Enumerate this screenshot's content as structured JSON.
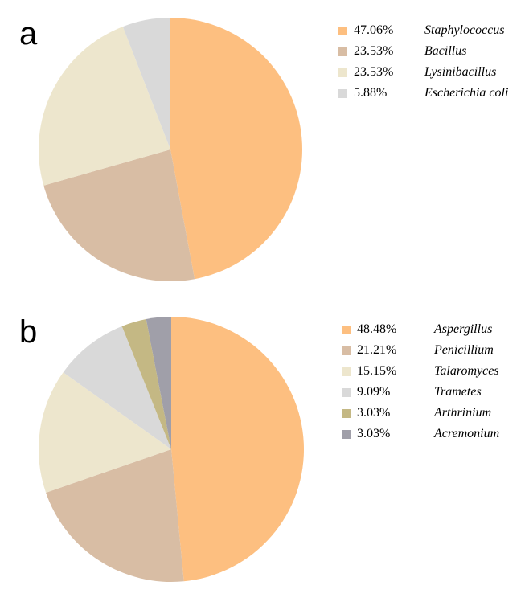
{
  "chart_data": [
    {
      "type": "pie",
      "panel": "a",
      "labels": [
        "Staphylococcus",
        "Bacillus",
        "Lysinibacillus",
        "Escherichia coli"
      ],
      "values": [
        47.06,
        23.53,
        23.53,
        5.88
      ],
      "value_labels": [
        "47.06%",
        "23.53%",
        "23.53%",
        "5.88%"
      ],
      "colors": [
        "#FDBF80",
        "#D8BDA4",
        "#EDE6CD",
        "#D9D9D9"
      ],
      "legend_position": "right"
    },
    {
      "type": "pie",
      "panel": "b",
      "labels": [
        "Aspergillus",
        "Penicillium",
        "Talaromyces",
        "Trametes",
        "Arthrinium",
        "Acremonium"
      ],
      "values": [
        48.48,
        21.21,
        15.15,
        9.09,
        3.03,
        3.03
      ],
      "value_labels": [
        "48.48%",
        "21.21%",
        "15.15%",
        "9.09%",
        "3.03%",
        "3.03%"
      ],
      "colors": [
        "#FDBF80",
        "#D8BDA4",
        "#EDE6CD",
        "#D9D9D9",
        "#C4B884",
        "#A09FA9"
      ],
      "legend_position": "right"
    }
  ]
}
